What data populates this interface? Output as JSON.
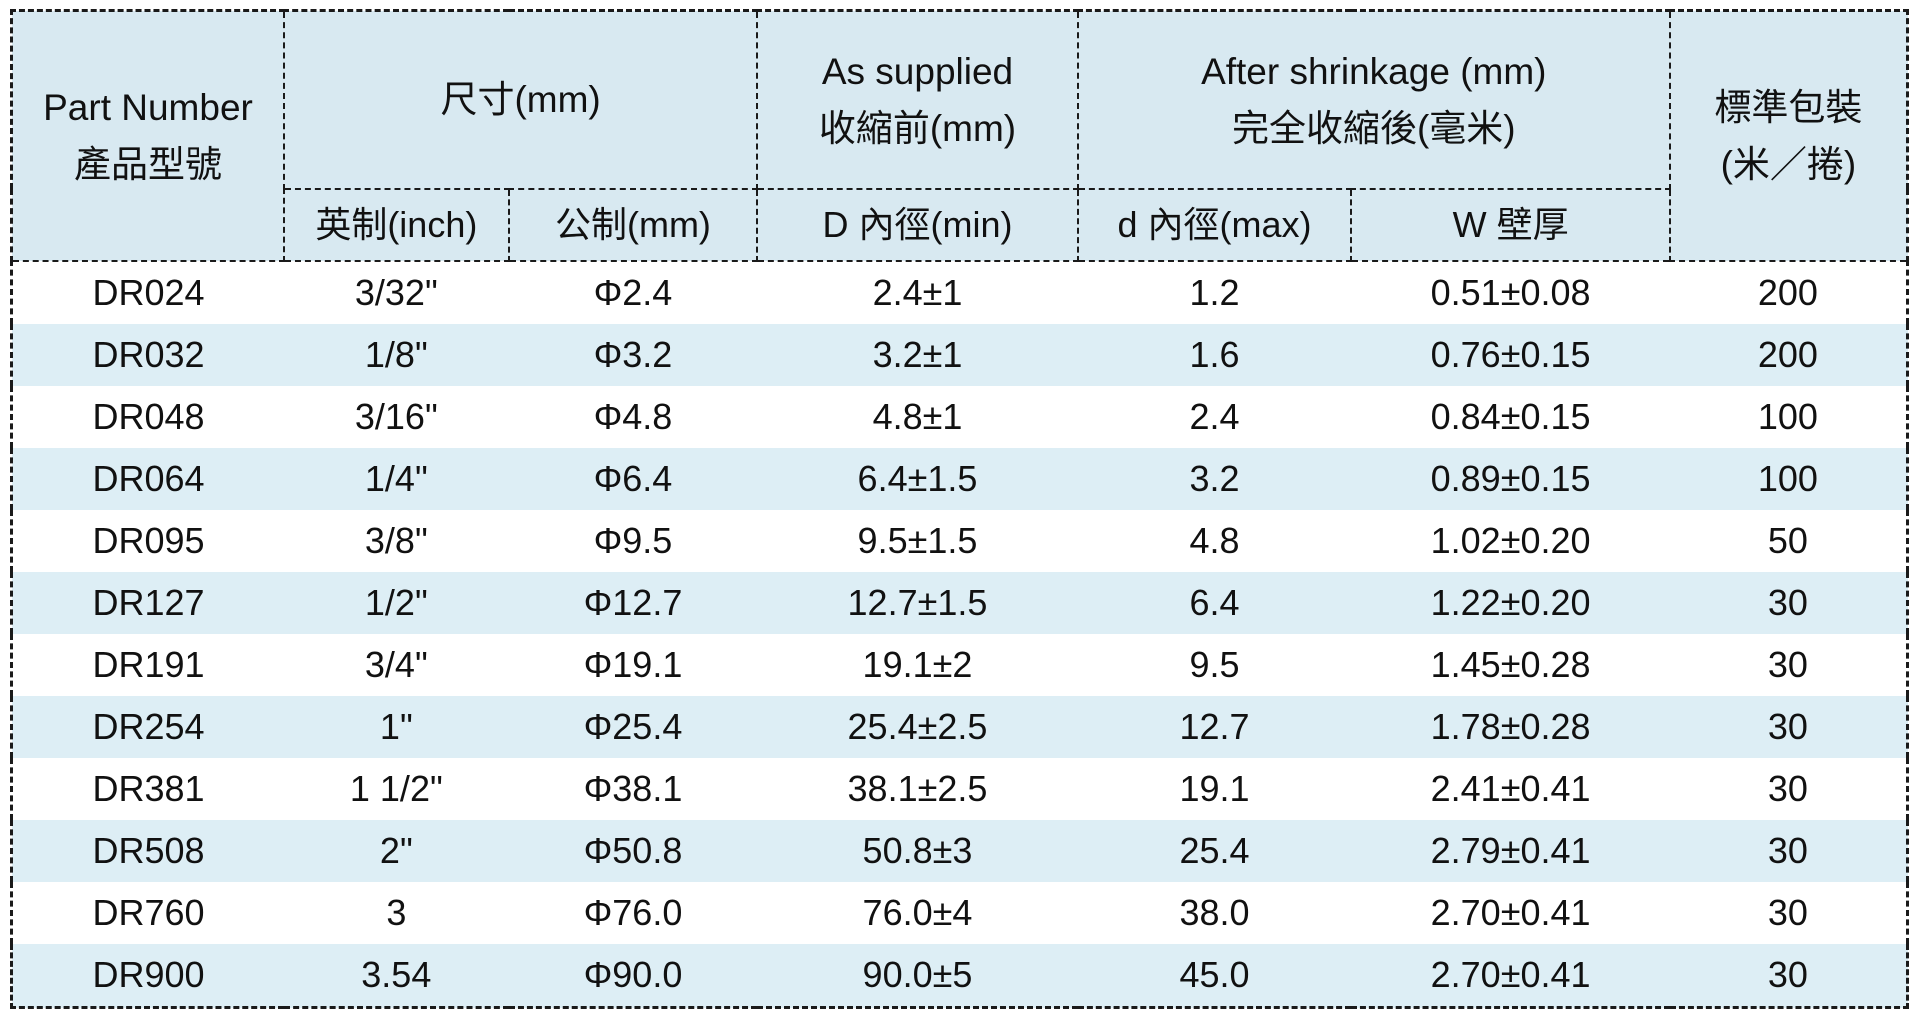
{
  "header": {
    "part_number": {
      "line1": "Part Number",
      "line2": "產品型號"
    },
    "size": {
      "line1": "尺寸(mm)"
    },
    "as_supplied": {
      "line1": "As supplied",
      "line2": "收縮前(mm)"
    },
    "after_shrinkage": {
      "line1": "After shrinkage (mm)",
      "line2": "完全收縮後(毫米)"
    },
    "packing": {
      "line1": "標準包裝",
      "line2": "(米／捲)"
    },
    "sub": {
      "inch": "英制(inch)",
      "metric": "公制(mm)",
      "d_min": "D  內徑(min)",
      "d_max": "d  內徑(max)",
      "wall": "W  壁厚"
    }
  },
  "rows": [
    {
      "part": "DR024",
      "inch": "3/32\"",
      "metric": "Φ2.4",
      "d_min": "2.4±1",
      "d_max": "1.2",
      "wall": "0.51±0.08",
      "packing": "200"
    },
    {
      "part": "DR032",
      "inch": "1/8\"",
      "metric": "Φ3.2",
      "d_min": "3.2±1",
      "d_max": "1.6",
      "wall": "0.76±0.15",
      "packing": "200"
    },
    {
      "part": "DR048",
      "inch": "3/16\"",
      "metric": "Φ4.8",
      "d_min": "4.8±1",
      "d_max": "2.4",
      "wall": "0.84±0.15",
      "packing": "100"
    },
    {
      "part": "DR064",
      "inch": "1/4\"",
      "metric": "Φ6.4",
      "d_min": "6.4±1.5",
      "d_max": "3.2",
      "wall": "0.89±0.15",
      "packing": "100"
    },
    {
      "part": "DR095",
      "inch": "3/8\"",
      "metric": "Φ9.5",
      "d_min": "9.5±1.5",
      "d_max": "4.8",
      "wall": "1.02±0.20",
      "packing": "50"
    },
    {
      "part": "DR127",
      "inch": "1/2\"",
      "metric": "Φ12.7",
      "d_min": "12.7±1.5",
      "d_max": "6.4",
      "wall": "1.22±0.20",
      "packing": "30"
    },
    {
      "part": "DR191",
      "inch": "3/4\"",
      "metric": "Φ19.1",
      "d_min": "19.1±2",
      "d_max": "9.5",
      "wall": "1.45±0.28",
      "packing": "30"
    },
    {
      "part": "DR254",
      "inch": "1\"",
      "metric": "Φ25.4",
      "d_min": "25.4±2.5",
      "d_max": "12.7",
      "wall": "1.78±0.28",
      "packing": "30"
    },
    {
      "part": "DR381",
      "inch": "1 1/2\"",
      "metric": "Φ38.1",
      "d_min": "38.1±2.5",
      "d_max": "19.1",
      "wall": "2.41±0.41",
      "packing": "30"
    },
    {
      "part": "DR508",
      "inch": "2\"",
      "metric": "Φ50.8",
      "d_min": "50.8±3",
      "d_max": "25.4",
      "wall": "2.79±0.41",
      "packing": "30"
    },
    {
      "part": "DR760",
      "inch": "3",
      "metric": "Φ76.0",
      "d_min": "76.0±4",
      "d_max": "38.0",
      "wall": "2.70±0.41",
      "packing": "30"
    },
    {
      "part": "DR900",
      "inch": "3.54",
      "metric": "Φ90.0",
      "d_min": "90.0±5",
      "d_max": "45.0",
      "wall": "2.70±0.41",
      "packing": "30"
    }
  ],
  "colors": {
    "header_bg": "#d8e9f1",
    "stripe_bg": "#ddeef5",
    "border": "#1a1a1a"
  }
}
